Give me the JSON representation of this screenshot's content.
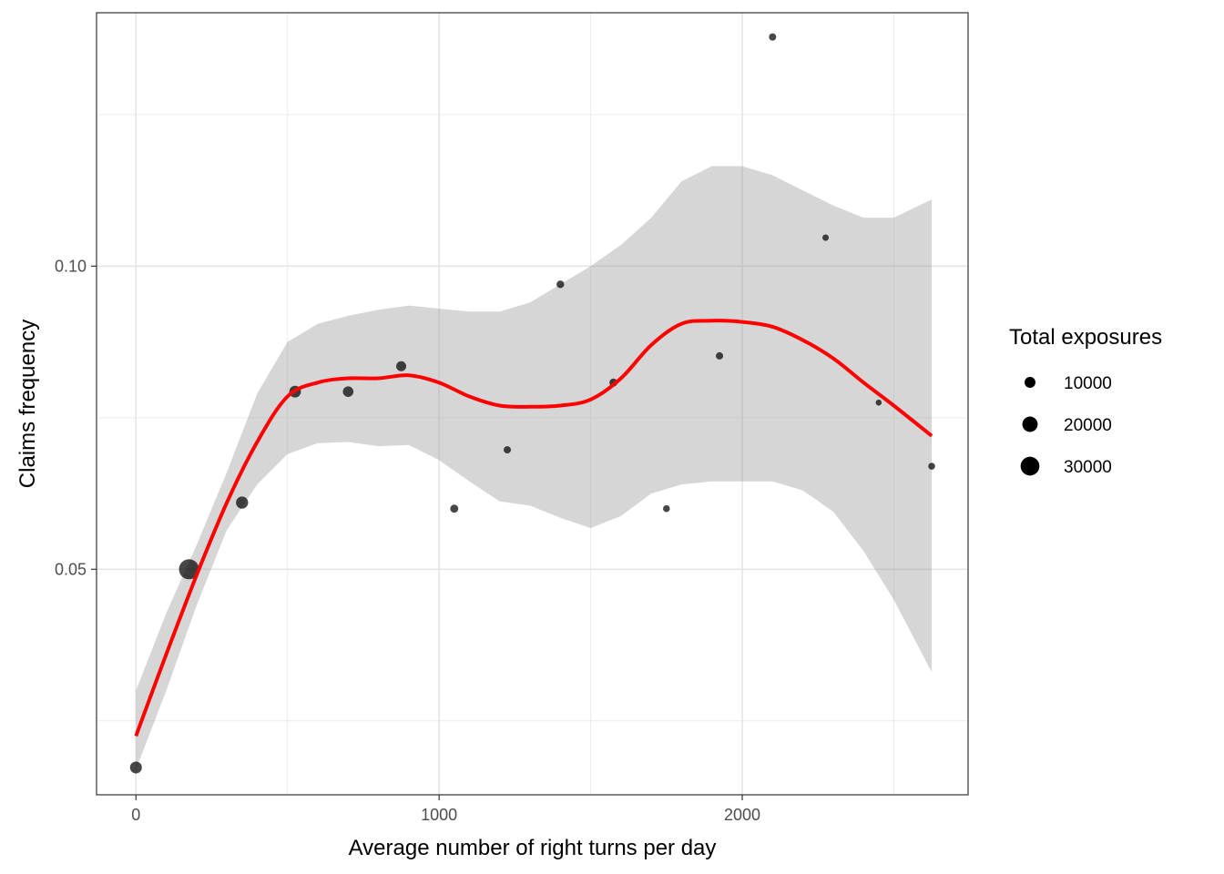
{
  "chart_data": {
    "type": "scatter",
    "xlabel": "Average number of right turns per day",
    "ylabel": "Claims frequency",
    "xlim": [
      -130,
      2745
    ],
    "ylim": [
      0.0128,
      0.1418
    ],
    "x_ticks": [
      0,
      1000,
      2000
    ],
    "x_tick_labels": [
      "0",
      "1000",
      "2000"
    ],
    "x_minor": [
      500,
      1500,
      2500
    ],
    "y_ticks": [
      0.05,
      0.1
    ],
    "y_tick_labels": [
      "0.05",
      "0.10"
    ],
    "y_minor": [
      0.025,
      0.075,
      0.125
    ],
    "grid": true,
    "points": [
      {
        "x": 0,
        "y": 0.0173,
        "exposure": 12000
      },
      {
        "x": 175,
        "y": 0.05,
        "exposure": 34000
      },
      {
        "x": 350,
        "y": 0.061,
        "exposure": 12500
      },
      {
        "x": 525,
        "y": 0.0793,
        "exposure": 11500
      },
      {
        "x": 700,
        "y": 0.0793,
        "exposure": 9500
      },
      {
        "x": 875,
        "y": 0.0835,
        "exposure": 8500
      },
      {
        "x": 1050,
        "y": 0.06,
        "exposure": 5500
      },
      {
        "x": 1225,
        "y": 0.0697,
        "exposure": 4500
      },
      {
        "x": 1400,
        "y": 0.097,
        "exposure": 5000
      },
      {
        "x": 1575,
        "y": 0.0808,
        "exposure": 5500
      },
      {
        "x": 1750,
        "y": 0.06,
        "exposure": 4000
      },
      {
        "x": 1925,
        "y": 0.0852,
        "exposure": 4500
      },
      {
        "x": 2100,
        "y": 0.1378,
        "exposure": 4500
      },
      {
        "x": 2275,
        "y": 0.1047,
        "exposure": 3500
      },
      {
        "x": 2450,
        "y": 0.0775,
        "exposure": 3000
      },
      {
        "x": 2625,
        "y": 0.067,
        "exposure": 4000
      }
    ],
    "smooth": {
      "color": "#ff0000",
      "x": [
        0,
        100,
        200,
        300,
        400,
        500,
        600,
        700,
        800,
        900,
        1000,
        1100,
        1200,
        1300,
        1400,
        1500,
        1600,
        1700,
        1800,
        1900,
        2000,
        2100,
        2200,
        2300,
        2400,
        2500,
        2625
      ],
      "y": [
        0.0225,
        0.036,
        0.049,
        0.061,
        0.071,
        0.0785,
        0.0808,
        0.0815,
        0.0815,
        0.082,
        0.0808,
        0.0785,
        0.077,
        0.0768,
        0.077,
        0.078,
        0.0815,
        0.087,
        0.0905,
        0.091,
        0.0908,
        0.09,
        0.0878,
        0.0848,
        0.0808,
        0.077,
        0.072
      ],
      "upper": [
        0.03,
        0.0428,
        0.054,
        0.066,
        0.079,
        0.0875,
        0.0905,
        0.0918,
        0.0928,
        0.0935,
        0.093,
        0.0925,
        0.0925,
        0.094,
        0.097,
        0.1,
        0.1035,
        0.108,
        0.114,
        0.1165,
        0.1165,
        0.115,
        0.1125,
        0.11,
        0.108,
        0.108,
        0.111
      ],
      "lower": [
        0.017,
        0.03,
        0.044,
        0.0565,
        0.064,
        0.069,
        0.0708,
        0.071,
        0.0703,
        0.0705,
        0.068,
        0.0645,
        0.0612,
        0.0605,
        0.0585,
        0.0568,
        0.0588,
        0.0625,
        0.064,
        0.0645,
        0.0645,
        0.0645,
        0.063,
        0.0595,
        0.053,
        0.045,
        0.033
      ]
    },
    "legend": {
      "title": "Total exposures",
      "position": "right",
      "entries": [
        {
          "label": "10000",
          "value": 10000
        },
        {
          "label": "20000",
          "value": 20000
        },
        {
          "label": "30000",
          "value": 30000
        }
      ]
    }
  }
}
